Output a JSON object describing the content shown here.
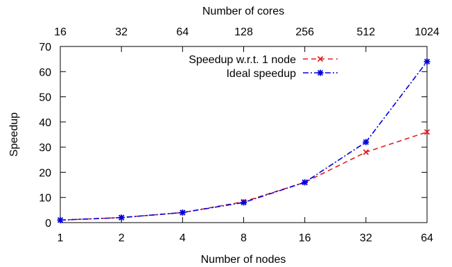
{
  "chart_data": {
    "type": "line",
    "title": "",
    "xlabel": "Number of nodes",
    "x2label": "Number of cores",
    "ylabel": "Speedup",
    "x_scale": "log2",
    "categories": [
      "1",
      "2",
      "4",
      "8",
      "16",
      "32",
      "64"
    ],
    "x": [
      1,
      2,
      4,
      8,
      16,
      32,
      64
    ],
    "x2_ticks": [
      "16",
      "32",
      "64",
      "128",
      "256",
      "512",
      "1024"
    ],
    "y_ticks": [
      "0",
      "10",
      "20",
      "30",
      "40",
      "50",
      "60",
      "70"
    ],
    "ylim": [
      0,
      70
    ],
    "grid": false,
    "legend_position": "top-right",
    "series": [
      {
        "name": "Speedup w.r.t. 1 node",
        "values": [
          1,
          2,
          4,
          8.3,
          16,
          28,
          36
        ],
        "color": "#e41a1c",
        "style": "dashed",
        "marker": "x"
      },
      {
        "name": "Ideal speedup",
        "values": [
          1,
          2,
          4,
          8,
          16,
          32,
          64
        ],
        "color": "#0000dd",
        "style": "dash-dot",
        "marker": "asterisk"
      }
    ]
  }
}
